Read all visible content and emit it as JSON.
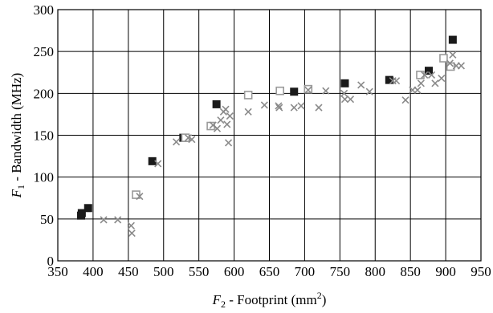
{
  "chart_data": {
    "type": "scatter",
    "xlim": [
      350,
      950
    ],
    "ylim": [
      0,
      300
    ],
    "x_ticks": [
      350,
      400,
      450,
      500,
      550,
      600,
      650,
      700,
      750,
      800,
      850,
      900,
      950
    ],
    "y_ticks": [
      0,
      50,
      100,
      150,
      200,
      250,
      300
    ],
    "grid": true,
    "xlabel": {
      "var": "F",
      "sub": "2",
      "text": " - Footprint (mm",
      "sup": "2",
      "tail": ")"
    },
    "ylabel": {
      "var": "F",
      "sub": "1",
      "text": " - Bandwidth (MHz)"
    },
    "series": [
      {
        "marker": "filled-square",
        "color": "#1a1a1a",
        "points": [
          [
            383,
            54
          ],
          [
            384,
            57
          ],
          [
            393,
            63
          ],
          [
            484,
            119
          ],
          [
            528,
            147
          ],
          [
            575,
            187
          ],
          [
            685,
            202
          ],
          [
            757,
            212
          ],
          [
            820,
            216
          ],
          [
            876,
            227
          ],
          [
            910,
            264
          ]
        ]
      },
      {
        "marker": "open-square",
        "color": "#9a9a9a",
        "points": [
          [
            461,
            79
          ],
          [
            531,
            147
          ],
          [
            567,
            161
          ],
          [
            620,
            198
          ],
          [
            665,
            203
          ],
          [
            705,
            205
          ],
          [
            864,
            222
          ],
          [
            897,
            242
          ],
          [
            907,
            232
          ]
        ]
      },
      {
        "marker": "x",
        "color": "#8a8a8a",
        "points": [
          [
            415,
            49
          ],
          [
            435,
            49
          ],
          [
            454,
            42
          ],
          [
            455,
            33
          ],
          [
            466,
            77
          ],
          [
            492,
            116
          ],
          [
            518,
            142
          ],
          [
            535,
            147
          ],
          [
            540,
            145
          ],
          [
            570,
            162
          ],
          [
            576,
            158
          ],
          [
            581,
            168
          ],
          [
            585,
            178
          ],
          [
            588,
            181
          ],
          [
            590,
            163
          ],
          [
            592,
            141
          ],
          [
            594,
            173
          ],
          [
            620,
            178
          ],
          [
            643,
            186
          ],
          [
            663,
            185
          ],
          [
            664,
            183
          ],
          [
            685,
            183
          ],
          [
            695,
            185
          ],
          [
            705,
            204
          ],
          [
            720,
            183
          ],
          [
            730,
            203
          ],
          [
            756,
            200
          ],
          [
            757,
            193
          ],
          [
            765,
            193
          ],
          [
            780,
            210
          ],
          [
            792,
            202
          ],
          [
            825,
            215
          ],
          [
            830,
            215
          ],
          [
            843,
            192
          ],
          [
            853,
            204
          ],
          [
            860,
            204
          ],
          [
            865,
            212
          ],
          [
            870,
            222
          ],
          [
            880,
            222
          ],
          [
            885,
            212
          ],
          [
            894,
            218
          ],
          [
            906,
            236
          ],
          [
            910,
            246
          ],
          [
            915,
            233
          ],
          [
            922,
            233
          ]
        ]
      }
    ]
  }
}
